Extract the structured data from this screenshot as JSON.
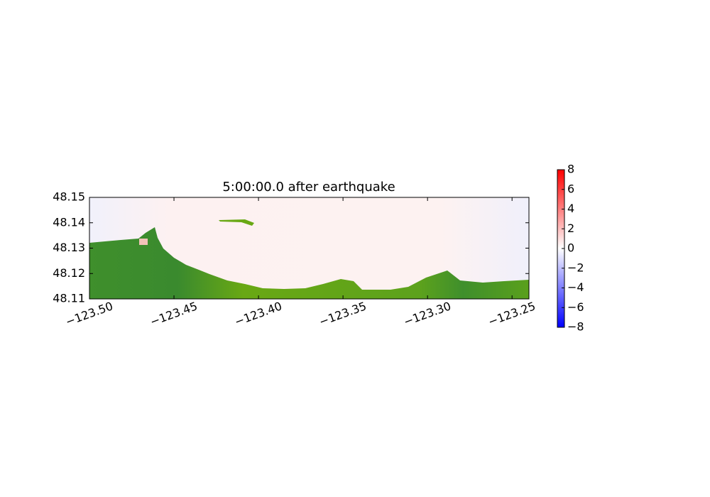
{
  "chart_data": {
    "type": "map",
    "title": "5:00:00.0 after earthquake",
    "xlim": [
      -123.5,
      -123.24
    ],
    "xticks": [
      {
        "value": -123.5,
        "label": "−123.50"
      },
      {
        "value": -123.45,
        "label": "−123.45"
      },
      {
        "value": -123.4,
        "label": "−123.40"
      },
      {
        "value": -123.35,
        "label": "−123.35"
      },
      {
        "value": -123.3,
        "label": "−123.30"
      },
      {
        "value": -123.25,
        "label": "−123.25"
      }
    ],
    "ylim": [
      48.11,
      48.15
    ],
    "yticks": [
      48.11,
      48.12,
      48.13,
      48.14,
      48.15
    ],
    "colorbar": {
      "colors": [
        "#0000ff",
        "#ffffff",
        "#ff0000"
      ],
      "lim": [
        -8,
        8
      ],
      "ticks": [
        {
          "value": -8,
          "label": "−8"
        },
        {
          "value": -6,
          "label": "−6"
        },
        {
          "value": -4,
          "label": "−4"
        },
        {
          "value": -2,
          "label": "−2"
        },
        0,
        2,
        4,
        6,
        8
      ]
    }
  }
}
